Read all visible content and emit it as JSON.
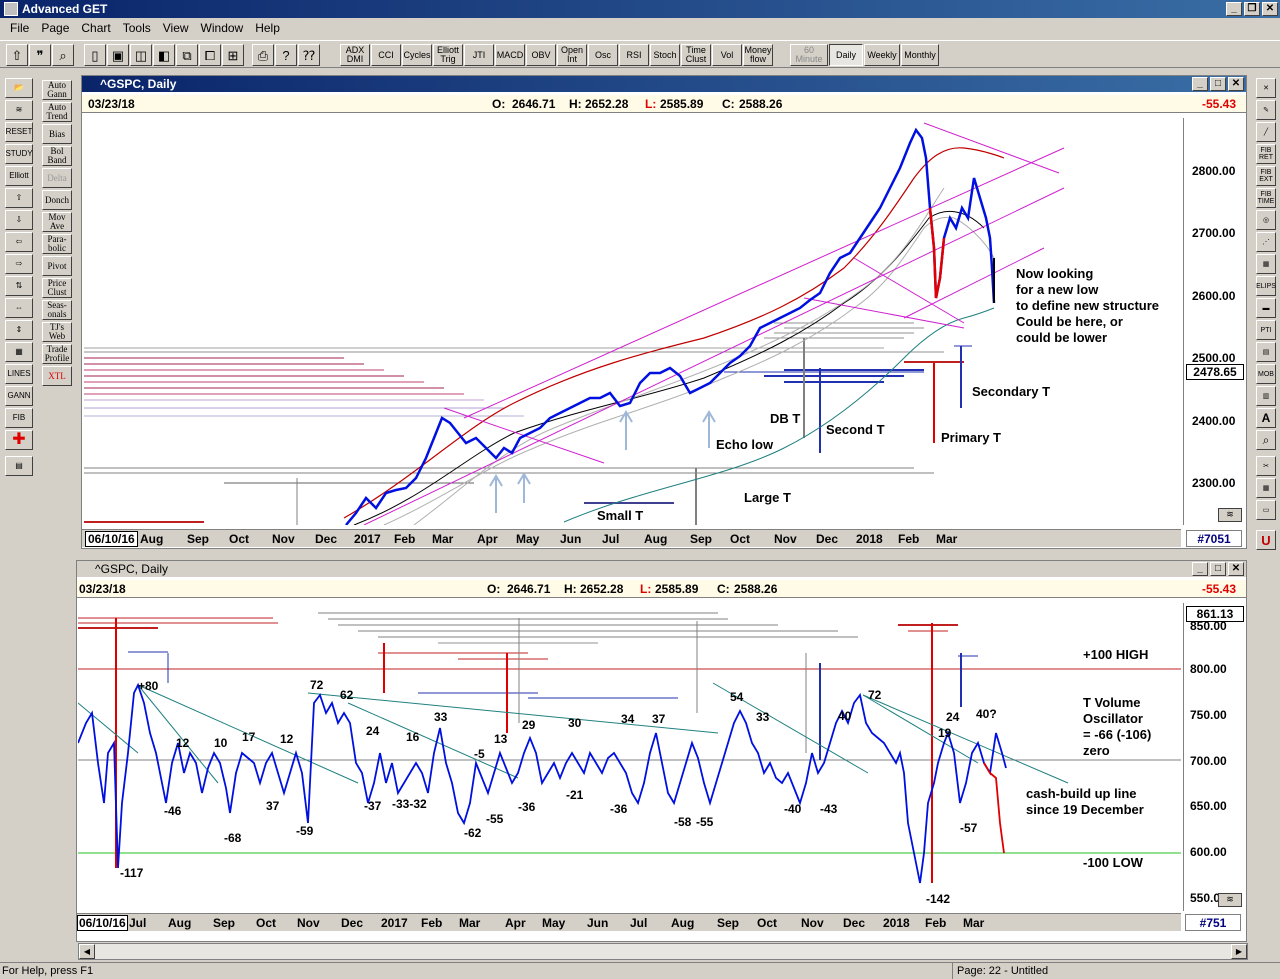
{
  "app": {
    "title": "Advanced GET"
  },
  "menu": [
    "File",
    "Page",
    "Chart",
    "Tools",
    "View",
    "Window",
    "Help"
  ],
  "toolbar": {
    "study_buttons": [
      "ADX DMI",
      "CCI",
      "Cycles",
      "Elliott Trig",
      "JTI",
      "MACD",
      "OBV",
      "Open Int",
      "Osc",
      "RSI",
      "Stoch",
      "Time Clust",
      "Vol",
      "Money flow"
    ],
    "timeframes": [
      "60 Minute",
      "Daily",
      "Weekly",
      "Monthly"
    ]
  },
  "left_tools": [
    "Auto Gann",
    "Auto Trend",
    "Bias",
    "Bol Band",
    "Delta",
    "Donch",
    "Mov Ave",
    "Para-bolic",
    "Pivot",
    "Price Clust",
    "Seas-onals",
    "TJ's Web",
    "Trade Profile",
    "XTL"
  ],
  "left_icons": [
    "RESET",
    "STUDY",
    "Elliott",
    "LINES",
    "GANN",
    "FIB"
  ],
  "right_tools": [
    "FIB RET",
    "FIB EXT",
    "FIB TIME",
    "ELIPS",
    "PTI",
    "MOB"
  ],
  "price_chart": {
    "title": "^GSPC, Daily",
    "date": "03/23/18",
    "open_label": "O:",
    "open": "2646.71",
    "high_label": "H:",
    "high": "2652.28",
    "low_label": "L:",
    "low": "2585.89",
    "close_label": "C:",
    "close": "2588.26",
    "change": "-55.43",
    "current_price": "2478.65",
    "bar_count": "#7051",
    "start_date": "06/10/16",
    "y_ticks": [
      "2800.00",
      "2700.00",
      "2600.00",
      "2500.00",
      "2400.00",
      "2300.00"
    ],
    "x_labels": [
      "Aug",
      "Sep",
      "Oct",
      "Nov",
      "Dec",
      "2017",
      "Feb",
      "Mar",
      "Apr",
      "May",
      "Jun",
      "Jul",
      "Aug",
      "Sep",
      "Oct",
      "Nov",
      "Dec",
      "2018",
      "Feb",
      "Mar"
    ],
    "annotations": {
      "note_1": "Now looking",
      "note_2": "for a new low",
      "note_3": "to define new structure",
      "note_4": "Could be here, or",
      "note_5": "could be lower",
      "secondary_t": "Secondary T",
      "primary_t": "Primary T",
      "second_t": "Second T",
      "db_t": "DB T",
      "echo_low": "Echo low",
      "large_t": "Large T",
      "small_t": "Small T"
    }
  },
  "osc_chart": {
    "title": "^GSPC, Daily",
    "date": "03/23/18",
    "open_label": "O:",
    "open": "2646.71",
    "high_label": "H:",
    "high": "2652.28",
    "low_label": "L:",
    "low": "2585.89",
    "close_label": "C:",
    "close": "2588.26",
    "change": "-55.43",
    "current_value": "861.13",
    "bar_count": "#751",
    "start_date": "06/10/16",
    "y_ticks": [
      "850.00",
      "800.00",
      "750.00",
      "700.00",
      "650.00",
      "600.00",
      "550.00"
    ],
    "x_labels": [
      "Jul",
      "Aug",
      "Sep",
      "Oct",
      "Nov",
      "Dec",
      "2017",
      "Feb",
      "Mar",
      "Apr",
      "May",
      "Jun",
      "Jul",
      "Aug",
      "Sep",
      "Oct",
      "Nov",
      "Dec",
      "2018",
      "Feb",
      "Mar"
    ],
    "annotations": {
      "high_line": "+100 HIGH",
      "low_line": "-100 LOW",
      "tvo_1": "T Volume",
      "tvo_2": "Oscillator",
      "tvo_3": "= -66 (-106)",
      "tvo_4": "zero",
      "cash_1": "cash-build up line",
      "cash_2": "since 19 December"
    },
    "peak_labels": [
      "+80",
      "12",
      "10",
      "17",
      "12",
      "72",
      "62",
      "24",
      "16",
      "33",
      "-5",
      "13",
      "29",
      "30",
      "34",
      "37",
      "54",
      "33",
      "40",
      "72",
      "24",
      "19",
      "40?"
    ],
    "trough_labels": [
      "-117",
      "-46",
      "-68",
      "37",
      "-59",
      "-37",
      "-33-32",
      "-62",
      "-55",
      "-36",
      "-21",
      "-36",
      "-58",
      "-55",
      "-40",
      "-43",
      "-142",
      "-57"
    ]
  },
  "status": {
    "help": "For Help, press F1",
    "page": "Page: 22 - Untitled"
  }
}
